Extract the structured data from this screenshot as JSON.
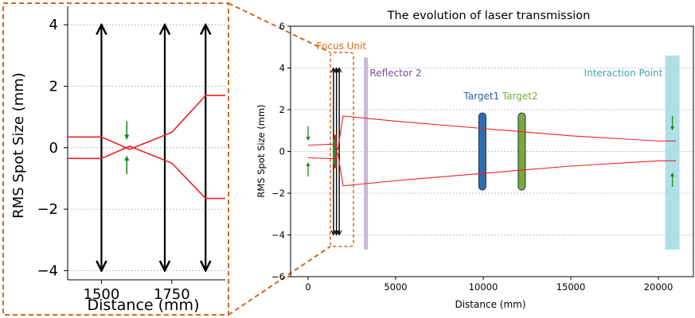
{
  "chart_data": [
    {
      "type": "line",
      "panel": "inset",
      "xlabel": "Distance (mm)",
      "ylabel": "RMS Spot Size (mm)",
      "xlim": [
        1380,
        1940
      ],
      "ylim": [
        -4.3,
        4.6
      ],
      "xticks": [
        1500,
        1750
      ],
      "yticks": [
        4,
        2,
        0,
        -2,
        -4
      ],
      "xtick_labels": [
        "1500",
        "1750"
      ],
      "ytick_labels": [
        "4",
        "2",
        "0",
        "−2",
        "−4"
      ],
      "grid": "horizontal dashed",
      "series": [
        {
          "x": [
            1380,
            1500,
            1600,
            1750,
            1870,
            1940
          ],
          "values": [
            0.35,
            0.35,
            -0.05,
            0.5,
            1.7,
            1.7
          ]
        },
        {
          "x": [
            1380,
            1500,
            1600,
            1750,
            1870,
            1940
          ],
          "values": [
            -0.35,
            -0.35,
            0.05,
            -0.5,
            -1.65,
            -1.65
          ]
        }
      ],
      "lens_markers_x": [
        1500,
        1725,
        1870
      ],
      "arrow_markers": [
        {
          "x": 1590,
          "direction": "down",
          "y": 0.55
        },
        {
          "x": 1590,
          "direction": "up",
          "y": -0.55
        }
      ]
    },
    {
      "type": "line",
      "panel": "main",
      "title": "The evolution of laser transmission",
      "xlabel": "Distance (mm)",
      "ylabel": "RMS Spot Size (mm)",
      "xlim": [
        -1000,
        22000
      ],
      "ylim": [
        -6,
        6
      ],
      "xticks": [
        0,
        5000,
        10000,
        15000,
        20000
      ],
      "xtick_labels": [
        "0",
        "5000",
        "10000",
        "15000",
        "20000"
      ],
      "yticks": [
        6,
        4,
        2,
        0,
        -2,
        -4,
        -6
      ],
      "ytick_labels": [
        "6",
        "4",
        "2",
        "0",
        "−2",
        "−4",
        "−6"
      ],
      "grid": "horizontal dashed",
      "series": [
        {
          "x": [
            0,
            1500,
            1700,
            2000,
            5000,
            10000,
            15000,
            20000,
            21000
          ],
          "values": [
            0.3,
            0.35,
            0.1,
            1.7,
            1.45,
            1.1,
            0.75,
            0.5,
            0.5
          ]
        },
        {
          "x": [
            0,
            1500,
            1700,
            2000,
            5000,
            10000,
            15000,
            20000,
            21000
          ],
          "values": [
            -0.3,
            -0.35,
            -0.1,
            -1.65,
            -1.4,
            -1.05,
            -0.7,
            -0.45,
            -0.45
          ]
        }
      ],
      "annotations": [
        {
          "text": "Focus Unit",
          "x": 1900,
          "y": 4.9,
          "color": "#e06a10"
        },
        {
          "text": "Reflector 2",
          "x": 5000,
          "y": 3.6,
          "color": "#7a4fa0"
        },
        {
          "text": "Target1",
          "x": 9900,
          "y": 2.5,
          "color": "#2f5fa0"
        },
        {
          "text": "Target2",
          "x": 12100,
          "y": 2.5,
          "color": "#7ca83a"
        },
        {
          "text": "Interaction Point",
          "x": 18000,
          "y": 3.6,
          "color": "#3aa8b8"
        }
      ],
      "components": [
        {
          "name": "Reflector 2",
          "x": 3300,
          "y_range": [
            -4.7,
            4.5
          ],
          "color": "#c7b8d8"
        },
        {
          "name": "Target1",
          "x": 9950,
          "y_range": [
            -1.85,
            1.85
          ],
          "color": "#2f6db0"
        },
        {
          "name": "Target2",
          "x": 12200,
          "y_range": [
            -1.85,
            1.85
          ],
          "color": "#7ca83a"
        },
        {
          "name": "Interaction Point",
          "x": 20800,
          "y_range": [
            -4.7,
            4.6
          ],
          "color": "#a9dbe6"
        }
      ],
      "lens_markers_x": [
        1450,
        1620,
        1780
      ]
    }
  ]
}
